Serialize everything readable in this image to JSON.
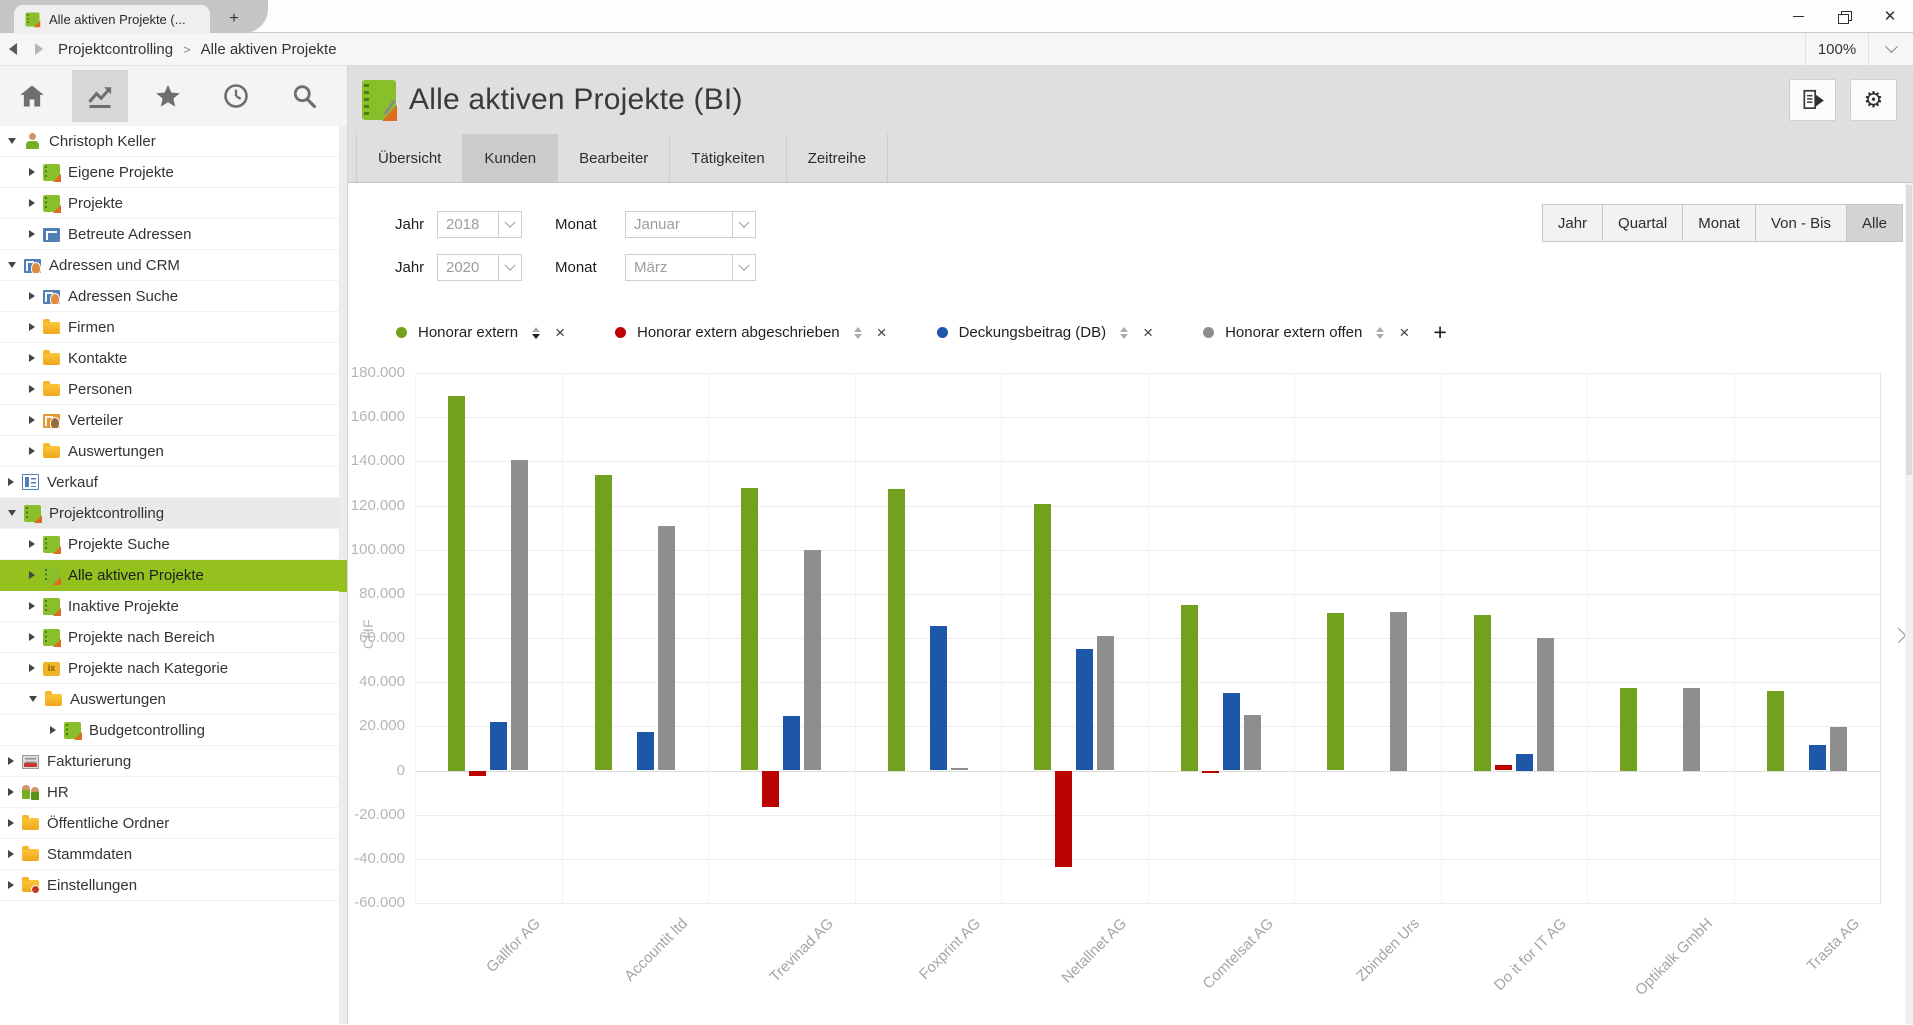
{
  "window": {
    "tab_title": "Alle aktiven Projekte (...",
    "new_tab_label": "+"
  },
  "breadcrumb": {
    "section": "Projektcontrolling",
    "separator": ">",
    "page": "Alle aktiven Projekte",
    "zoom_level": "100%"
  },
  "sidebar": {
    "items": [
      {
        "label": "Christoph Keller",
        "level": 0,
        "expanded": true,
        "icon": "user"
      },
      {
        "label": "Eigene Projekte",
        "level": 1,
        "expanded": false,
        "icon": "book"
      },
      {
        "label": "Projekte",
        "level": 1,
        "expanded": false,
        "icon": "book"
      },
      {
        "label": "Betreute Adressen",
        "level": 1,
        "expanded": false,
        "icon": "building"
      },
      {
        "label": "Adressen und CRM",
        "level": 0,
        "expanded": true,
        "icon": "crm"
      },
      {
        "label": "Adressen Suche",
        "level": 1,
        "expanded": false,
        "icon": "crm"
      },
      {
        "label": "Firmen",
        "level": 1,
        "expanded": false,
        "icon": "folder"
      },
      {
        "label": "Kontakte",
        "level": 1,
        "expanded": false,
        "icon": "folder"
      },
      {
        "label": "Personen",
        "level": 1,
        "expanded": false,
        "icon": "folder"
      },
      {
        "label": "Verteiler",
        "level": 1,
        "expanded": false,
        "icon": "crm-orange"
      },
      {
        "label": "Auswertungen",
        "level": 1,
        "expanded": false,
        "icon": "folder"
      },
      {
        "label": "Verkauf",
        "level": 0,
        "expanded": false,
        "icon": "list"
      },
      {
        "label": "Projektcontrolling",
        "level": 0,
        "expanded": true,
        "icon": "book",
        "emph": true
      },
      {
        "label": "Projekte Suche",
        "level": 1,
        "expanded": false,
        "icon": "book"
      },
      {
        "label": "Alle aktiven Projekte",
        "level": 1,
        "expanded": false,
        "icon": "book",
        "selected": true
      },
      {
        "label": "Inaktive Projekte",
        "level": 1,
        "expanded": false,
        "icon": "book"
      },
      {
        "label": "Projekte nach Bereich",
        "level": 1,
        "expanded": false,
        "icon": "book"
      },
      {
        "label": "Projekte nach Kategorie",
        "level": 1,
        "expanded": false,
        "icon": "kategorie"
      },
      {
        "label": "Auswertungen",
        "level": 1,
        "expanded": true,
        "icon": "folder"
      },
      {
        "label": "Budgetcontrolling",
        "level": 2,
        "expanded": false,
        "icon": "book"
      },
      {
        "label": "Fakturierung",
        "level": 0,
        "expanded": false,
        "icon": "invoice"
      },
      {
        "label": "HR",
        "level": 0,
        "expanded": false,
        "icon": "hr"
      },
      {
        "label": "Öffentliche Ordner",
        "level": 0,
        "expanded": false,
        "icon": "folder"
      },
      {
        "label": "Stammdaten",
        "level": 0,
        "expanded": false,
        "icon": "folder"
      },
      {
        "label": "Einstellungen",
        "level": 0,
        "expanded": false,
        "icon": "folder-settings"
      }
    ]
  },
  "header": {
    "title": "Alle aktiven Projekte (BI)"
  },
  "main": {
    "tabs": [
      {
        "label": "Übersicht"
      },
      {
        "label": "Kunden",
        "active": true
      },
      {
        "label": "Bearbeiter"
      },
      {
        "label": "Tätigkeiten"
      },
      {
        "label": "Zeitreihe"
      }
    ]
  },
  "filters": {
    "rows": [
      {
        "year_label": "Jahr",
        "year_value": "2018",
        "month_label": "Monat",
        "month_value": "Januar"
      },
      {
        "year_label": "Jahr",
        "year_value": "2020",
        "month_label": "Monat",
        "month_value": "März"
      }
    ]
  },
  "period_buttons": [
    {
      "label": "Jahr"
    },
    {
      "label": "Quartal"
    },
    {
      "label": "Monat"
    },
    {
      "label": "Von - Bis"
    },
    {
      "label": "Alle",
      "active": true
    }
  ],
  "legend": {
    "items": [
      {
        "label": "Honorar extern",
        "color": "#71a11e",
        "sort": "desc"
      },
      {
        "label": "Honorar extern abgeschrieben",
        "color": "#bd0202",
        "sort": null
      },
      {
        "label": "Deckungsbeitrag (DB)",
        "color": "#1e57a8",
        "sort": null
      },
      {
        "label": "Honorar extern offen",
        "color": "#8e8e8e",
        "sort": null
      }
    ],
    "remove_label": "×",
    "add_label": "+"
  },
  "chart_data": {
    "type": "bar",
    "title": "",
    "xlabel": "",
    "ylabel": "CHF",
    "unit": "CHF",
    "grid": true,
    "legend_position": "top",
    "ylim": [
      -60000,
      180000
    ],
    "ytick_step": 20000,
    "ytick_labels": [
      "180.000",
      "160.000",
      "140.000",
      "120.000",
      "100.000",
      "80.000",
      "60.000",
      "40.000",
      "20.000",
      "0",
      "-20.000",
      "-40.000",
      "-60.000"
    ],
    "categories": [
      "Gallfor AG",
      "Accountit ltd",
      "Trevinad AG",
      "Foxprint AG",
      "Netallnet AG",
      "Comtelsat AG",
      "Zbinden Urs",
      "Do it for IT AG",
      "Optikalk GmbH",
      "Trasta AG"
    ],
    "series": [
      {
        "name": "Honorar extern",
        "color": "#71a11e",
        "values": [
          169500,
          134000,
          128000,
          127500,
          120500,
          75000,
          71500,
          70500,
          37500,
          36000
        ]
      },
      {
        "name": "Honorar extern abgeschrieben",
        "color": "#bd0202",
        "values": [
          -2500,
          0,
          -16500,
          0,
          -43500,
          -1000,
          0,
          2500,
          0,
          0
        ]
      },
      {
        "name": "Deckungsbeitrag (DB)",
        "color": "#1e57a8",
        "values": [
          22000,
          17500,
          24500,
          65500,
          55000,
          35000,
          0,
          7500,
          0,
          11500
        ]
      },
      {
        "name": "Honorar extern offen",
        "color": "#8e8e8e",
        "values": [
          140500,
          110500,
          100000,
          1000,
          61000,
          25000,
          72000,
          60000,
          37500,
          19500
        ]
      }
    ]
  }
}
